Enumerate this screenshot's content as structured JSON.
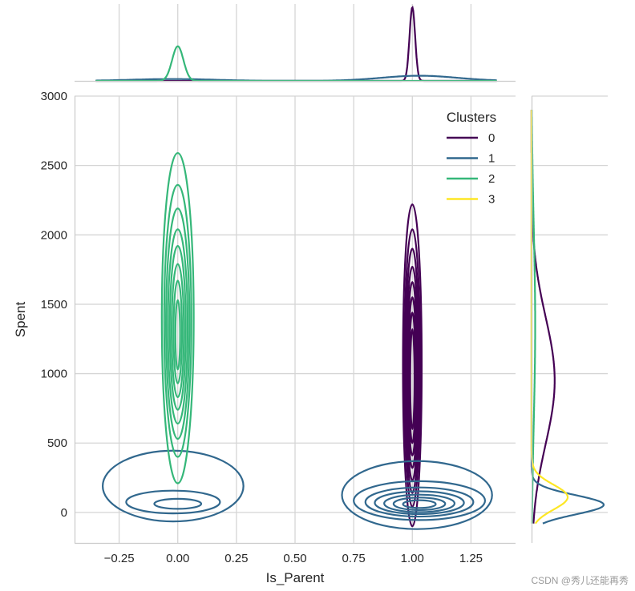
{
  "chart_data": {
    "type": "contour",
    "xlabel": "Is_Parent",
    "ylabel": "Spent",
    "xlim": [
      -0.44,
      1.44
    ],
    "ylim": [
      -220,
      3000
    ],
    "x_ticks": [
      -0.25,
      0.0,
      0.25,
      0.5,
      0.75,
      1.0,
      1.25
    ],
    "x_tick_labels": [
      "−0.25",
      "0.00",
      "0.25",
      "0.50",
      "0.75",
      "1.00",
      "1.25"
    ],
    "y_ticks": [
      0,
      500,
      1000,
      1500,
      2000,
      2500,
      3000
    ],
    "y_tick_labels": [
      "0",
      "500",
      "1000",
      "1500",
      "2000",
      "2500",
      "3000"
    ],
    "grid": true,
    "legend": {
      "title": "Clusters",
      "placement": "top-right"
    },
    "series": [
      {
        "name": "0",
        "color": "#440154",
        "contours": [
          {
            "cx": 1.0,
            "cy": 1060,
            "rx": 0.04,
            "ry": 1160
          },
          {
            "cx": 1.0,
            "cy": 1040,
            "rx": 0.034,
            "ry": 1000
          },
          {
            "cx": 1.0,
            "cy": 1020,
            "rx": 0.029,
            "ry": 880
          },
          {
            "cx": 1.0,
            "cy": 1000,
            "rx": 0.025,
            "ry": 770
          },
          {
            "cx": 1.0,
            "cy": 990,
            "rx": 0.021,
            "ry": 670
          },
          {
            "cx": 1.0,
            "cy": 980,
            "rx": 0.017,
            "ry": 570
          },
          {
            "cx": 1.0,
            "cy": 970,
            "rx": 0.013,
            "ry": 470
          },
          {
            "cx": 1.0,
            "cy": 960,
            "rx": 0.009,
            "ry": 360
          }
        ],
        "marginal_x": [
          {
            "center": 1.0,
            "width": 0.012,
            "height": 1.0
          }
        ],
        "marginal_y": [
          {
            "center": 950,
            "width": 460,
            "height": 0.32
          }
        ]
      },
      {
        "name": "1",
        "color": "#31688e",
        "contours": [
          {
            "cx": 1.02,
            "cy": 125,
            "rx": 0.32,
            "ry": 245
          },
          {
            "cx": 1.03,
            "cy": 85,
            "rx": 0.28,
            "ry": 140
          },
          {
            "cx": 1.03,
            "cy": 75,
            "rx": 0.23,
            "ry": 105
          },
          {
            "cx": 1.03,
            "cy": 70,
            "rx": 0.19,
            "ry": 82
          },
          {
            "cx": 1.03,
            "cy": 65,
            "rx": 0.15,
            "ry": 63
          },
          {
            "cx": 1.03,
            "cy": 62,
            "rx": 0.11,
            "ry": 45
          },
          {
            "cx": 1.03,
            "cy": 60,
            "rx": 0.07,
            "ry": 28
          },
          {
            "cx": -0.02,
            "cy": 190,
            "rx": 0.3,
            "ry": 255
          },
          {
            "cx": -0.02,
            "cy": 75,
            "rx": 0.2,
            "ry": 82
          },
          {
            "cx": 0.0,
            "cy": 62,
            "rx": 0.1,
            "ry": 36
          }
        ],
        "marginal_x": [
          {
            "center": 1.03,
            "width": 0.16,
            "height": 0.07
          },
          {
            "center": -0.02,
            "width": 0.18,
            "height": 0.025
          }
        ],
        "marginal_y": [
          {
            "center": 55,
            "width": 70,
            "height": 1.0
          }
        ]
      },
      {
        "name": "2",
        "color": "#35b779",
        "contours": [
          {
            "cx": 0.0,
            "cy": 1400,
            "rx": 0.068,
            "ry": 1190
          },
          {
            "cx": 0.0,
            "cy": 1380,
            "rx": 0.058,
            "ry": 980
          },
          {
            "cx": 0.0,
            "cy": 1360,
            "rx": 0.05,
            "ry": 830
          },
          {
            "cx": 0.0,
            "cy": 1340,
            "rx": 0.042,
            "ry": 700
          },
          {
            "cx": 0.0,
            "cy": 1330,
            "rx": 0.034,
            "ry": 590
          },
          {
            "cx": 0.0,
            "cy": 1310,
            "rx": 0.026,
            "ry": 480
          },
          {
            "cx": 0.0,
            "cy": 1300,
            "rx": 0.018,
            "ry": 370
          },
          {
            "cx": 0.0,
            "cy": 1280,
            "rx": 0.01,
            "ry": 250
          }
        ],
        "marginal_x": [
          {
            "center": 0.0,
            "width": 0.024,
            "height": 0.47
          }
        ],
        "marginal_y": [
          {
            "center": 1350,
            "width": 700,
            "height": 0.05
          }
        ]
      },
      {
        "name": "3",
        "color": "#fde725",
        "contours": [],
        "marginal_x": [],
        "marginal_y": [
          {
            "center": 110,
            "width": 90,
            "height": 0.5
          }
        ]
      }
    ]
  },
  "watermark": "CSDN @秀儿还能再秀"
}
